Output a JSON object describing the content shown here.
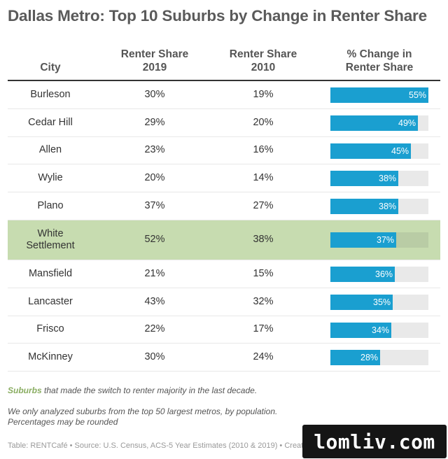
{
  "title": "Dallas Metro: Top 10 Suburbs by Change in Renter Share",
  "columns": {
    "city": "City",
    "share_2019": "Renter Share\n2019",
    "share_2010": "Renter Share\n2010",
    "pct_change": "% Change in\nRenter Share"
  },
  "colors": {
    "bar": "#1a9fd0",
    "bar_track": "#e9e9e9",
    "highlight_row": "#c7dcb0",
    "accent_text": "#8aad62",
    "title": "#5a5a5a"
  },
  "chart_data": {
    "type": "table",
    "bar_column": "pct_change",
    "bar_max": 55,
    "rows": [
      {
        "city": "Burleson",
        "share_2019": "30%",
        "share_2010": "19%",
        "pct_change": 55,
        "pct_label": "55%",
        "highlight": false
      },
      {
        "city": "Cedar Hill",
        "share_2019": "29%",
        "share_2010": "20%",
        "pct_change": 49,
        "pct_label": "49%",
        "highlight": false
      },
      {
        "city": "Allen",
        "share_2019": "23%",
        "share_2010": "16%",
        "pct_change": 45,
        "pct_label": "45%",
        "highlight": false
      },
      {
        "city": "Wylie",
        "share_2019": "20%",
        "share_2010": "14%",
        "pct_change": 38,
        "pct_label": "38%",
        "highlight": false
      },
      {
        "city": "Plano",
        "share_2019": "37%",
        "share_2010": "27%",
        "pct_change": 38,
        "pct_label": "38%",
        "highlight": false
      },
      {
        "city": "White\nSettlement",
        "share_2019": "52%",
        "share_2010": "38%",
        "pct_change": 37,
        "pct_label": "37%",
        "highlight": true
      },
      {
        "city": "Mansfield",
        "share_2019": "21%",
        "share_2010": "15%",
        "pct_change": 36,
        "pct_label": "36%",
        "highlight": false
      },
      {
        "city": "Lancaster",
        "share_2019": "43%",
        "share_2010": "32%",
        "pct_change": 35,
        "pct_label": "35%",
        "highlight": false
      },
      {
        "city": "Frisco",
        "share_2019": "22%",
        "share_2010": "17%",
        "pct_change": 34,
        "pct_label": "34%",
        "highlight": false
      },
      {
        "city": "McKinney",
        "share_2019": "30%",
        "share_2010": "24%",
        "pct_change": 28,
        "pct_label": "28%",
        "highlight": false
      }
    ]
  },
  "notes": {
    "highlight_word": "Suburbs",
    "highlight_rest": " that made the switch to renter majority in the last decade.",
    "analysis_line1": "We only analyzed suburbs from the top 50 largest metros, by population.",
    "analysis_line2": "Percentages may be rounded"
  },
  "source": "Table: RENTCafé • Source: U.S. Census, ACS-5 Year Estimates (2010 & 2019) • Creat",
  "watermark": "lomliv.com"
}
